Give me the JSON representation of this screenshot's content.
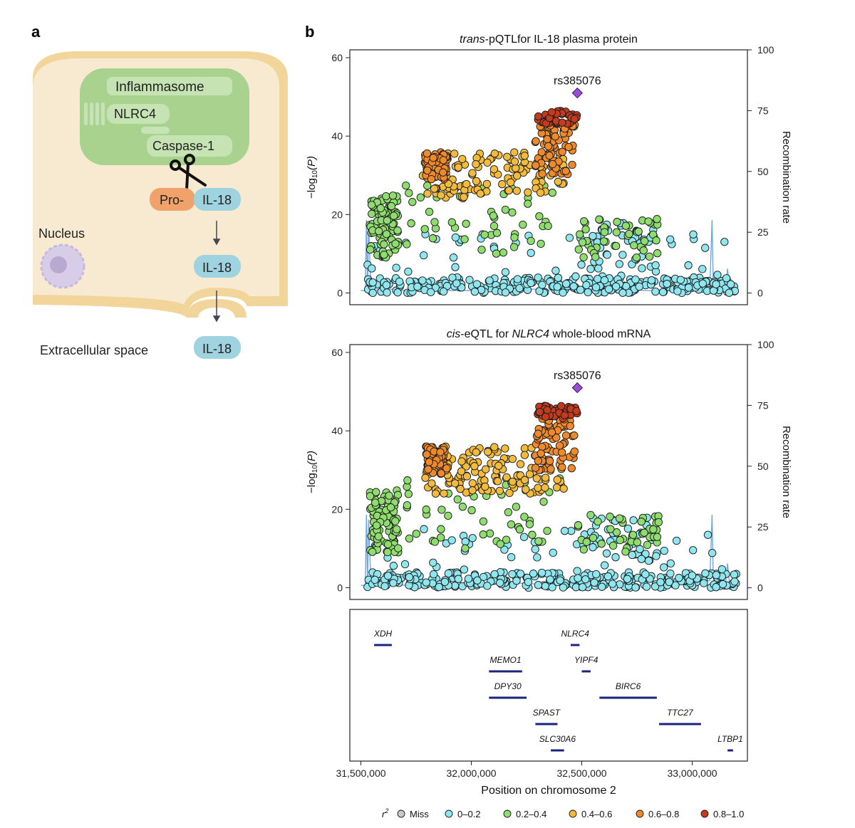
{
  "panel_a": {
    "letter": "a",
    "inflammasome": "Inflammasome",
    "nlrc4": "NLRC4",
    "caspase": "Caspase-1",
    "pro": "Pro-",
    "il18_bound": "IL-18",
    "il18_mid": "IL-18",
    "il18_out": "IL-18",
    "nucleus": "Nucleus",
    "extracellular": "Extracellular space",
    "colors": {
      "cell": "#f5e6c8",
      "membrane": "#f1d59a",
      "inflammasome": "#a9d28f",
      "pro": "#f0a26a",
      "il18": "#9fd3e0",
      "nucleus": "#b9a9d1"
    },
    "icons": [
      "scissors-icon",
      "arrow-down-icon"
    ]
  },
  "panel_b": {
    "letter": "b",
    "lead_snp": "rs385076",
    "colors": {
      "miss": "#c8c8c8",
      "r0": "#8fe6ef",
      "r1": "#8fdc6f",
      "r2": "#f2bb3d",
      "r3": "#ee8a2c",
      "r4": "#c23b1e",
      "lead": "#9a4fd6",
      "recomb": "#6fa6e6",
      "gene": "#1a237e"
    }
  },
  "chart_data": [
    {
      "type": "scatter",
      "title_italic": "trans",
      "title_rest": "-pQTLfor IL-18 plasma protein",
      "ylabel_main": "−log",
      "ylabel_sub": "10",
      "ylabel_end": "(P)",
      "y2label": "Recombination rate",
      "ylim": [
        -3,
        62
      ],
      "y2lim": [
        -4.8,
        100
      ],
      "yticks": [
        0,
        20,
        40,
        60
      ],
      "y2ticks": [
        0,
        25,
        50,
        75,
        100
      ],
      "xlim": [
        31450000,
        33250000
      ],
      "lead": {
        "x": 32480000,
        "y": 51
      },
      "points_summary": [
        {
          "r2": "0-0.2",
          "x_range": [
            31530000,
            33200000
          ],
          "y_range": [
            0,
            17
          ]
        },
        {
          "r2": "0.2-0.4",
          "x_range": [
            31540000,
            32850000
          ],
          "y_range": [
            9,
            31
          ]
        },
        {
          "r2": "0.4-0.6",
          "x_range": [
            31780000,
            32430000
          ],
          "y_range": [
            24,
            37
          ]
        },
        {
          "r2": "0.6-0.8",
          "x_range": [
            31790000,
            32470000
          ],
          "y_range": [
            21,
            45
          ]
        },
        {
          "r2": "0.8-1.0",
          "x_range": [
            32300000,
            32480000
          ],
          "y_range": [
            43,
            46
          ]
        }
      ]
    },
    {
      "type": "scatter",
      "title_italic": "cis",
      "title_mid": "-eQTL for ",
      "title_gene": "NLRC4",
      "title_rest": " whole-blood mRNA",
      "ylabel_main": "−log",
      "ylabel_sub": "10",
      "ylabel_end": "(P)",
      "y2label": "Recombination rate",
      "ylim": [
        -3,
        62
      ],
      "y2lim": [
        -4.8,
        100
      ],
      "yticks": [
        0,
        20,
        40,
        60
      ],
      "y2ticks": [
        0,
        25,
        50,
        75,
        100
      ],
      "xlim": [
        31450000,
        33250000
      ],
      "lead": {
        "x": 32480000,
        "y": 51
      },
      "points_summary": [
        {
          "r2": "0-0.2",
          "x_range": [
            31530000,
            33200000
          ],
          "y_range": [
            0,
            17
          ]
        },
        {
          "r2": "0.2-0.4",
          "x_range": [
            31540000,
            32850000
          ],
          "y_range": [
            9,
            31
          ]
        },
        {
          "r2": "0.4-0.6",
          "x_range": [
            31780000,
            32430000
          ],
          "y_range": [
            24,
            37
          ]
        },
        {
          "r2": "0.6-0.8",
          "x_range": [
            31790000,
            32470000
          ],
          "y_range": [
            21,
            45
          ]
        },
        {
          "r2": "0.8-1.0",
          "x_range": [
            32300000,
            32480000
          ],
          "y_range": [
            43,
            46
          ]
        }
      ]
    },
    {
      "type": "gene_track",
      "xlabel": "Position on chromosome 2",
      "xlim": [
        31450000,
        33250000
      ],
      "xticks": [
        31500000,
        32000000,
        32500000,
        33000000
      ],
      "xtick_labels": [
        "31,500,000",
        "32,000,000",
        "32,500,000",
        "33,000,000"
      ],
      "genes": [
        {
          "name": "XDH",
          "start": 31560000,
          "end": 31640000,
          "row": 0
        },
        {
          "name": "NLRC4",
          "start": 32450000,
          "end": 32490000,
          "row": 0
        },
        {
          "name": "MEMO1",
          "start": 32080000,
          "end": 32230000,
          "row": 1
        },
        {
          "name": "YIPF4",
          "start": 32500000,
          "end": 32540000,
          "row": 1
        },
        {
          "name": "DPY30",
          "start": 32080000,
          "end": 32250000,
          "row": 2
        },
        {
          "name": "BIRC6",
          "start": 32580000,
          "end": 32840000,
          "row": 2
        },
        {
          "name": "SPAST",
          "start": 32290000,
          "end": 32390000,
          "row": 3
        },
        {
          "name": "TTC27",
          "start": 32850000,
          "end": 33040000,
          "row": 3
        },
        {
          "name": "SLC30A6",
          "start": 32360000,
          "end": 32420000,
          "row": 4
        },
        {
          "name": "LTBP1",
          "start": 33160000,
          "end": 33185000,
          "row": 4
        }
      ]
    }
  ],
  "legend": {
    "title": "r",
    "title_sup": "2",
    "items": [
      {
        "label": "Miss",
        "color": "#c8c8c8"
      },
      {
        "label": "0–0.2",
        "color": "#8fe6ef"
      },
      {
        "label": "0.2–0.4",
        "color": "#8fdc6f"
      },
      {
        "label": "0.4–0.6",
        "color": "#f2bb3d"
      },
      {
        "label": "0.6–0.8",
        "color": "#ee8a2c"
      },
      {
        "label": "0.8–1.0",
        "color": "#c23b1e"
      }
    ]
  }
}
